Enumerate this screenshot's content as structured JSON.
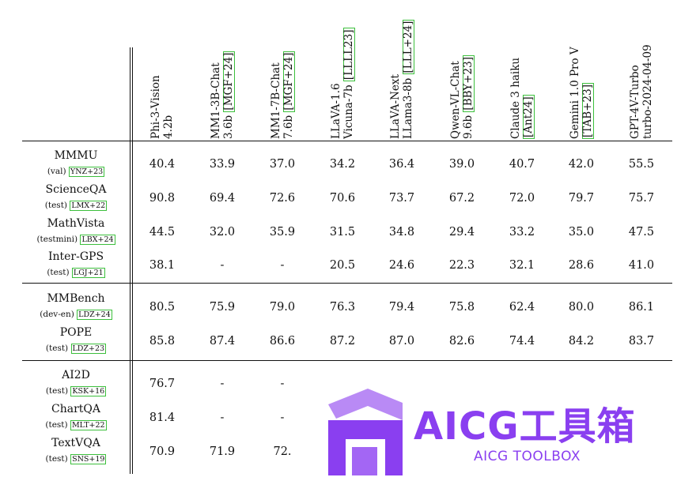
{
  "columns": [
    {
      "line1": "Phi-3-Vision",
      "line2": "4.2b",
      "ref": ""
    },
    {
      "line1": "MM1-3B-Chat",
      "line2": "3.6b",
      "ref": "[MGF+24]"
    },
    {
      "line1": "MM1-7B-Chat",
      "line2": "7.6b",
      "ref": "[MGF+24]"
    },
    {
      "line1": "LLaVA-1.6",
      "line2": "Vicuna-7b",
      "ref": "[LLLL23]"
    },
    {
      "line1": "LLaVA-Next",
      "line2": "LLama3-8b",
      "ref": "[LLL+24]"
    },
    {
      "line1": "Qwen-VL-Chat",
      "line2": "9.6b",
      "ref": "[BBY+23]"
    },
    {
      "line1": "Claude 3 haiku",
      "line2": "",
      "ref": "[Ant24]"
    },
    {
      "line1": "Gemini 1.0 Pro V",
      "line2": "",
      "ref": "[TAB+23]"
    },
    {
      "line1": "GPT-4V-Turbo",
      "line2": "turbo-2024-04-09",
      "ref": ""
    }
  ],
  "rows": [
    {
      "name": "MMMU",
      "split": "(val)",
      "ref": "YNZ+23",
      "values": [
        "40.4",
        "33.9",
        "37.0",
        "34.2",
        "36.4",
        "39.0",
        "40.7",
        "42.0",
        "55.5"
      ]
    },
    {
      "name": "ScienceQA",
      "split": "(test)",
      "ref": "LMX+22",
      "values": [
        "90.8",
        "69.4",
        "72.6",
        "70.6",
        "73.7",
        "67.2",
        "72.0",
        "79.7",
        "75.7"
      ]
    },
    {
      "name": "MathVista",
      "split": "(testmini)",
      "ref": "LBX+24",
      "values": [
        "44.5",
        "32.0",
        "35.9",
        "31.5",
        "34.8",
        "29.4",
        "33.2",
        "35.0",
        "47.5"
      ]
    },
    {
      "name": "Inter-GPS",
      "split": "(test)",
      "ref": "LGJ+21",
      "values": [
        "38.1",
        "-",
        "-",
        "20.5",
        "24.6",
        "22.3",
        "32.1",
        "28.6",
        "41.0"
      ]
    },
    {
      "name": "MMBench",
      "split": "(dev-en)",
      "ref": "LDZ+24",
      "values": [
        "80.5",
        "75.9",
        "79.0",
        "76.3",
        "79.4",
        "75.8",
        "62.4",
        "80.0",
        "86.1"
      ]
    },
    {
      "name": "POPE",
      "split": "(test)",
      "ref": "LDZ+23",
      "values": [
        "85.8",
        "87.4",
        "86.6",
        "87.2",
        "87.0",
        "82.6",
        "74.4",
        "84.2",
        "83.7"
      ]
    },
    {
      "name": "AI2D",
      "split": "(test)",
      "ref": "KSK+16",
      "values": [
        "76.7",
        "-",
        "-",
        "",
        "",
        "",
        "",
        "",
        ""
      ]
    },
    {
      "name": "ChartQA",
      "split": "(test)",
      "ref": "MLT+22",
      "values": [
        "81.4",
        "-",
        "-",
        "",
        "",
        "",
        "",
        "",
        ""
      ]
    },
    {
      "name": "TextVQA",
      "split": "(test)",
      "ref": "SNS+19",
      "values": [
        "70.9",
        "71.9",
        "72.",
        "",
        "",
        "",
        "",
        "",
        ""
      ]
    }
  ],
  "watermark": {
    "title": "AICG工具箱",
    "subtitle": "AICG TOOLBOX",
    "color": "#8a3ff0"
  }
}
